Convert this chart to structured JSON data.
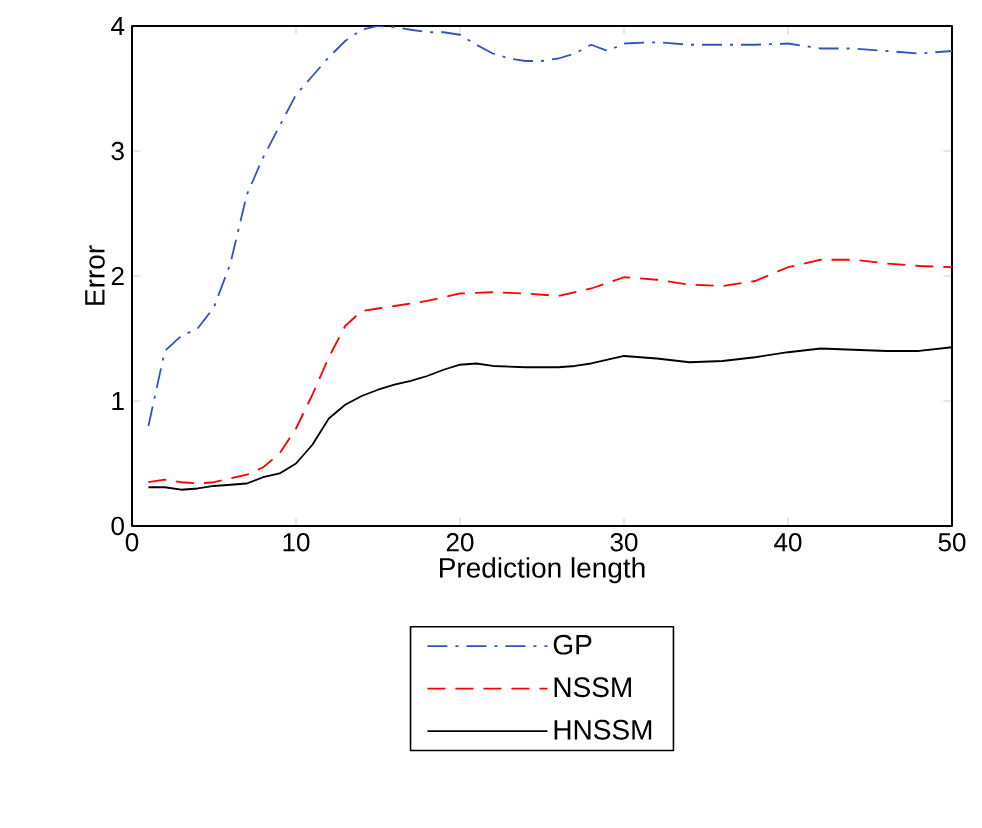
{
  "chart_data": {
    "type": "line",
    "xlabel": "Prediction length",
    "ylabel": "Error",
    "xlim": [
      0,
      50
    ],
    "ylim": [
      0,
      4
    ],
    "xticks": [
      0,
      10,
      20,
      30,
      40,
      50
    ],
    "yticks": [
      0,
      1,
      2,
      3,
      4
    ],
    "legend": "bottom",
    "grid": false,
    "marker": "none",
    "series": [
      {
        "name": "GP",
        "color": "#3355bb",
        "line_style": "dashdot",
        "x": [
          1,
          2,
          3,
          4,
          5,
          6,
          7,
          8,
          9,
          10,
          11,
          12,
          13,
          14,
          15,
          16,
          17,
          18,
          19,
          20,
          21,
          22,
          23,
          24,
          25,
          26,
          27,
          28,
          29,
          30,
          32,
          34,
          36,
          38,
          40,
          42,
          44,
          46,
          48,
          50
        ],
        "values": [
          0.8,
          1.4,
          1.52,
          1.58,
          1.75,
          2.1,
          2.65,
          2.95,
          3.2,
          3.45,
          3.6,
          3.75,
          3.88,
          3.97,
          4.0,
          3.99,
          3.97,
          3.95,
          3.95,
          3.93,
          3.85,
          3.78,
          3.74,
          3.72,
          3.72,
          3.74,
          3.78,
          3.85,
          3.8,
          3.86,
          3.87,
          3.85,
          3.85,
          3.85,
          3.86,
          3.82,
          3.82,
          3.8,
          3.78,
          3.8
        ]
      },
      {
        "name": "NSSM",
        "color": "#ff0000",
        "line_style": "dashed",
        "x": [
          1,
          2,
          3,
          4,
          5,
          6,
          7,
          8,
          9,
          10,
          11,
          12,
          13,
          14,
          15,
          16,
          17,
          18,
          19,
          20,
          22,
          24,
          26,
          28,
          30,
          32,
          34,
          36,
          38,
          40,
          42,
          44,
          46,
          48,
          50
        ],
        "values": [
          0.35,
          0.37,
          0.35,
          0.34,
          0.35,
          0.38,
          0.41,
          0.47,
          0.58,
          0.78,
          1.05,
          1.35,
          1.6,
          1.72,
          1.74,
          1.76,
          1.78,
          1.8,
          1.83,
          1.86,
          1.87,
          1.86,
          1.84,
          1.9,
          1.99,
          1.97,
          1.93,
          1.92,
          1.96,
          2.07,
          2.13,
          2.13,
          2.1,
          2.08,
          2.07
        ]
      },
      {
        "name": "HNSSM",
        "color": "#000000",
        "line_style": "solid",
        "x": [
          1,
          2,
          3,
          4,
          5,
          6,
          7,
          8,
          9,
          10,
          11,
          12,
          13,
          14,
          15,
          16,
          17,
          18,
          19,
          20,
          21,
          22,
          24,
          26,
          27,
          28,
          30,
          32,
          34,
          36,
          38,
          40,
          42,
          44,
          46,
          48,
          50
        ],
        "values": [
          0.31,
          0.31,
          0.29,
          0.3,
          0.32,
          0.33,
          0.34,
          0.39,
          0.42,
          0.5,
          0.65,
          0.86,
          0.97,
          1.04,
          1.09,
          1.13,
          1.16,
          1.2,
          1.25,
          1.29,
          1.3,
          1.28,
          1.27,
          1.27,
          1.28,
          1.3,
          1.36,
          1.34,
          1.31,
          1.32,
          1.35,
          1.39,
          1.42,
          1.41,
          1.4,
          1.4,
          1.43
        ]
      }
    ]
  }
}
